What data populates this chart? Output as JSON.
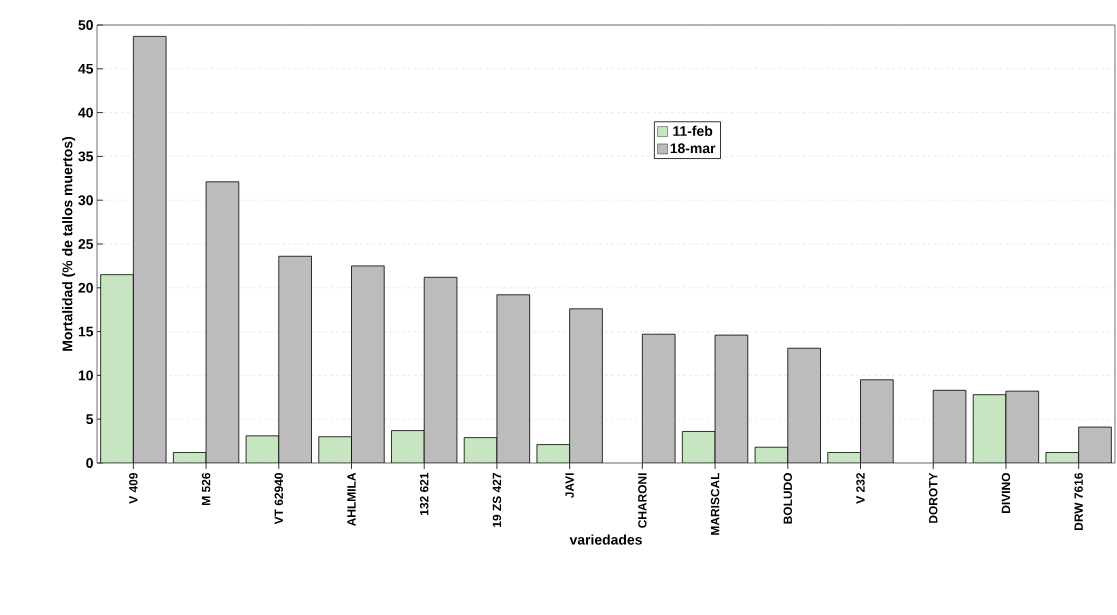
{
  "chart_data": {
    "type": "bar",
    "xlabel": "variedades",
    "ylabel": "Mortalidad  (% de tallos muertos)",
    "categories": [
      "V 409",
      "M 526",
      "VT 62940",
      "AHLMILA",
      "132 621",
      "19 ZS 427",
      "JAVI",
      "CHARONI",
      "MARISCAL",
      "BOLUDO",
      "V 232",
      "DOROTY",
      "DIVINO",
      "DRW 7616"
    ],
    "series": [
      {
        "name": "11-feb",
        "color": "#c6e5c0",
        "values": [
          21.5,
          1.2,
          3.1,
          3.0,
          3.7,
          2.9,
          2.1,
          null,
          3.6,
          1.8,
          1.2,
          null,
          7.8,
          1.2
        ]
      },
      {
        "name": "18-mar",
        "color": "#bcbcbc",
        "values": [
          48.7,
          32.1,
          23.6,
          22.5,
          21.2,
          19.2,
          17.6,
          14.7,
          14.6,
          13.1,
          9.5,
          8.3,
          8.2,
          4.1
        ]
      }
    ],
    "ylim": [
      0,
      50
    ],
    "yticks": [
      0,
      5,
      10,
      15,
      20,
      25,
      30,
      35,
      40,
      45,
      50
    ],
    "grid": "y",
    "legend": "top"
  }
}
